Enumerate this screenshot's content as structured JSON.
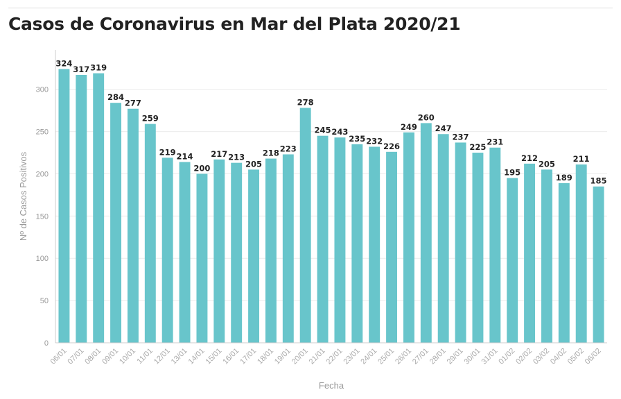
{
  "chart_data": {
    "type": "bar",
    "title": "Casos de Coronavirus en Mar del Plata 2020/21",
    "xlabel": "Fecha",
    "ylabel": "Nº de Casos Positivos",
    "ylim": [
      0,
      340
    ],
    "yticks": [
      0,
      50,
      100,
      150,
      200,
      250,
      300
    ],
    "grid": true,
    "legend": "none",
    "bar_color": "#68c5cb",
    "categories": [
      "06/01",
      "07/01",
      "08/01",
      "09/01",
      "10/01",
      "11/01",
      "12/01",
      "13/01",
      "14/01",
      "15/01",
      "16/01",
      "17/01",
      "18/01",
      "19/01",
      "20/01",
      "21/01",
      "22/01",
      "23/01",
      "24/01",
      "25/01",
      "26/01",
      "27/01",
      "28/01",
      "29/01",
      "30/01",
      "31/01",
      "01/02",
      "02/02",
      "03/02",
      "04/02",
      "05/02",
      "06/02"
    ],
    "values": [
      324,
      317,
      319,
      284,
      277,
      259,
      219,
      214,
      200,
      217,
      213,
      205,
      218,
      223,
      278,
      245,
      243,
      235,
      232,
      226,
      249,
      260,
      247,
      237,
      225,
      231,
      195,
      212,
      205,
      189,
      211,
      185
    ]
  }
}
